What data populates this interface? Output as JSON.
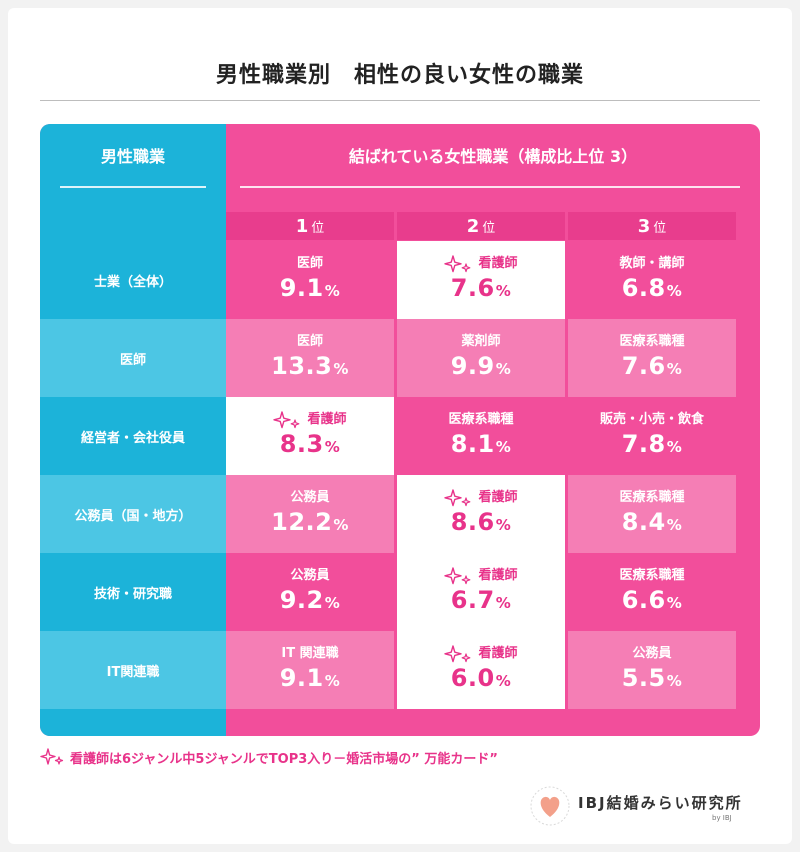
{
  "title": "男性職業別　相性の良い女性の職業",
  "table": {
    "left_header": "男性職業",
    "right_header": "結ばれている女性職業（構成比上位 3）",
    "ranks": [
      {
        "num": "1",
        "suffix": "位"
      },
      {
        "num": "2",
        "suffix": "位"
      },
      {
        "num": "3",
        "suffix": "位"
      }
    ],
    "rows": [
      {
        "label": "士業（全体）",
        "cells": [
          {
            "job": "医師",
            "value": "9.1",
            "unit": "%"
          },
          {
            "job": "看護師",
            "value": "7.6",
            "unit": "%",
            "star": true
          },
          {
            "job": "教師・講師",
            "value": "6.8",
            "unit": "%"
          }
        ]
      },
      {
        "label": "医師",
        "cells": [
          {
            "job": "医師",
            "value": "13.3",
            "unit": "%"
          },
          {
            "job": "薬剤師",
            "value": "9.9",
            "unit": "%"
          },
          {
            "job": "医療系職種",
            "value": "7.6",
            "unit": "%"
          }
        ]
      },
      {
        "label": "経営者・会社役員",
        "cells": [
          {
            "job": "看護師",
            "value": "8.3",
            "unit": "%",
            "star": true
          },
          {
            "job": "医療系職種",
            "value": "8.1",
            "unit": "%"
          },
          {
            "job": "販売・小売・飲食",
            "value": "7.8",
            "unit": "%"
          }
        ]
      },
      {
        "label": "公務員（国・地方）",
        "cells": [
          {
            "job": "公務員",
            "value": "12.2",
            "unit": "%"
          },
          {
            "job": "看護師",
            "value": "8.6",
            "unit": "%",
            "star": true
          },
          {
            "job": "医療系職種",
            "value": "8.4",
            "unit": "%"
          }
        ]
      },
      {
        "label": "技術・研究職",
        "cells": [
          {
            "job": "公務員",
            "value": "9.2",
            "unit": "%"
          },
          {
            "job": "看護師",
            "value": "6.7",
            "unit": "%",
            "star": true
          },
          {
            "job": "医療系職種",
            "value": "6.6",
            "unit": "%"
          }
        ]
      },
      {
        "label": "IT関連職",
        "cells": [
          {
            "job": "IT 関連職",
            "value": "9.1",
            "unit": "%"
          },
          {
            "job": "看護師",
            "value": "6.0",
            "unit": "%",
            "star": true
          },
          {
            "job": "公務員",
            "value": "5.5",
            "unit": "%"
          }
        ]
      }
    ]
  },
  "footnote": "看護師は6ジャンル中5ジャンルでTOP3入り－婚活市場の” 万能カード”",
  "logo": {
    "text": "IBJ結婚みらい研究所",
    "by": "by IBJ",
    "icon": "heart-icon"
  },
  "colors": {
    "pink": "#f24e9b",
    "pink_alt": "#f57eb5",
    "pink_dark": "#e83d8d",
    "blue": "#1cb3d9",
    "blue_alt": "#4cc6e4",
    "highlight_text": "#e8338a"
  }
}
